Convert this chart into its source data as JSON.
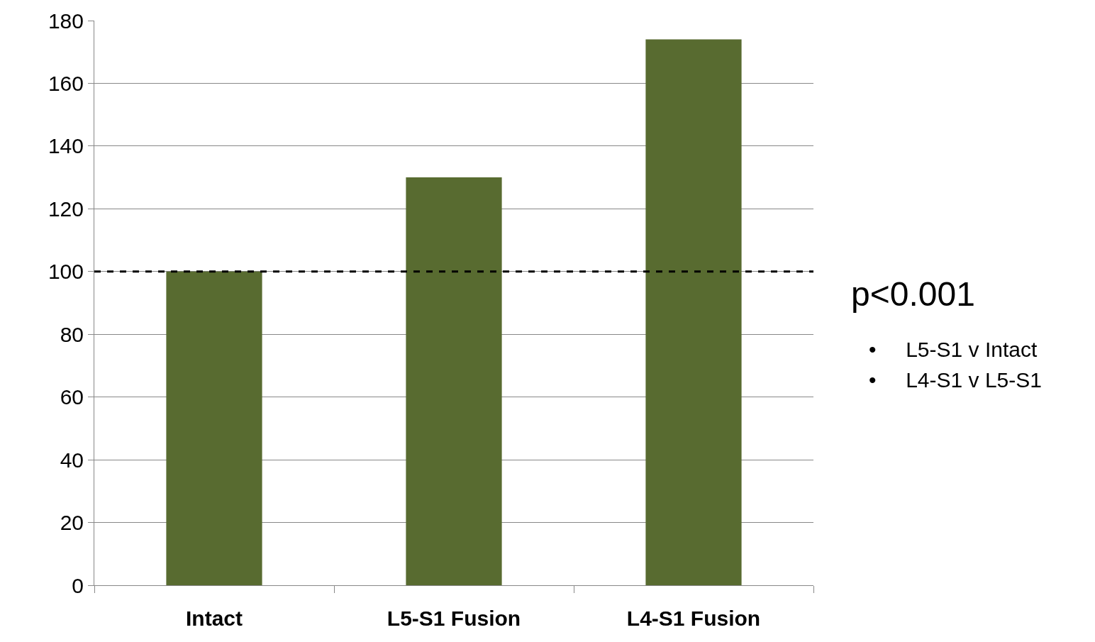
{
  "chart_data": {
    "type": "bar",
    "categories": [
      "Intact",
      "L5-S1 Fusion",
      "L4-S1 Fusion"
    ],
    "values": [
      100,
      130,
      174
    ],
    "color": "#586b30",
    "ylim": [
      0,
      180
    ],
    "yticks": [
      0,
      20,
      40,
      60,
      80,
      100,
      120,
      140,
      160,
      180
    ],
    "grid": "y",
    "ref_lines": [
      {
        "axis": "y",
        "value": 100,
        "color": "#000000",
        "line_style": "dashed"
      }
    ],
    "annotations": [
      "p<0.001",
      "•     L5-S1 v Intact",
      "•     L4-S1 v L5-S1"
    ]
  }
}
